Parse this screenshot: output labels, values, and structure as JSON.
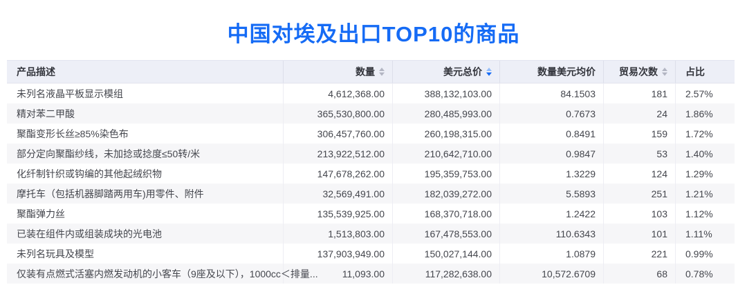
{
  "page": {
    "title": "中国对埃及出口TOP10的商品"
  },
  "colors": {
    "accent": "#156bf5",
    "header_bg": "#edeff7",
    "stripe": "#f6f6f8"
  },
  "table": {
    "columns": [
      {
        "key": "desc",
        "label": "产品描述",
        "align": "left",
        "sortable": false,
        "sort": "none"
      },
      {
        "key": "qty",
        "label": "数量",
        "align": "right",
        "sortable": true,
        "sort": "none"
      },
      {
        "key": "usd",
        "label": "美元总价",
        "align": "right",
        "sortable": true,
        "sort": "desc"
      },
      {
        "key": "avg",
        "label": "数量美元均价",
        "align": "right",
        "sortable": false,
        "sort": "none"
      },
      {
        "key": "count",
        "label": "贸易次数",
        "align": "right",
        "sortable": true,
        "sort": "none"
      },
      {
        "key": "share",
        "label": "占比",
        "align": "left",
        "sortable": false,
        "sort": "none"
      }
    ],
    "rows": [
      [
        "未列名液晶平板显示模组",
        "4,612,368.00",
        "388,132,103.00",
        "84.1503",
        "181",
        "2.57%"
      ],
      [
        "精对苯二甲酸",
        "365,530,800.00",
        "280,485,993.00",
        "0.7673",
        "24",
        "1.86%"
      ],
      [
        "聚酯变形长丝≥85%染色布",
        "306,457,760.00",
        "260,198,315.00",
        "0.8491",
        "159",
        "1.72%"
      ],
      [
        "部分定向聚酯纱线，未加捻或捻度≤50转/米",
        "213,922,512.00",
        "210,642,710.00",
        "0.9847",
        "53",
        "1.40%"
      ],
      [
        "化纤制针织或钩编的其他起绒织物",
        "147,678,262.00",
        "195,359,753.00",
        "1.3229",
        "124",
        "1.29%"
      ],
      [
        "摩托车（包括机器脚踏两用车)用零件、附件",
        "32,569,491.00",
        "182,039,272.00",
        "5.5893",
        "251",
        "1.21%"
      ],
      [
        "聚酯弹力丝",
        "135,539,925.00",
        "168,370,718.00",
        "1.2422",
        "103",
        "1.12%"
      ],
      [
        "已装在组件内或组装成块的光电池",
        "1,513,803.00",
        "167,478,553.00",
        "110.6343",
        "101",
        "1.11%"
      ],
      [
        "未列名玩具及模型",
        "137,903,949.00",
        "150,027,144.00",
        "1.0879",
        "221",
        "0.99%"
      ],
      [
        "仅装有点燃式活塞内燃发动机的小客车（9座及以下），1000cc＜排量...",
        "11,093.00",
        "117,282,638.00",
        "10,572.6709",
        "68",
        "0.78%"
      ]
    ]
  }
}
